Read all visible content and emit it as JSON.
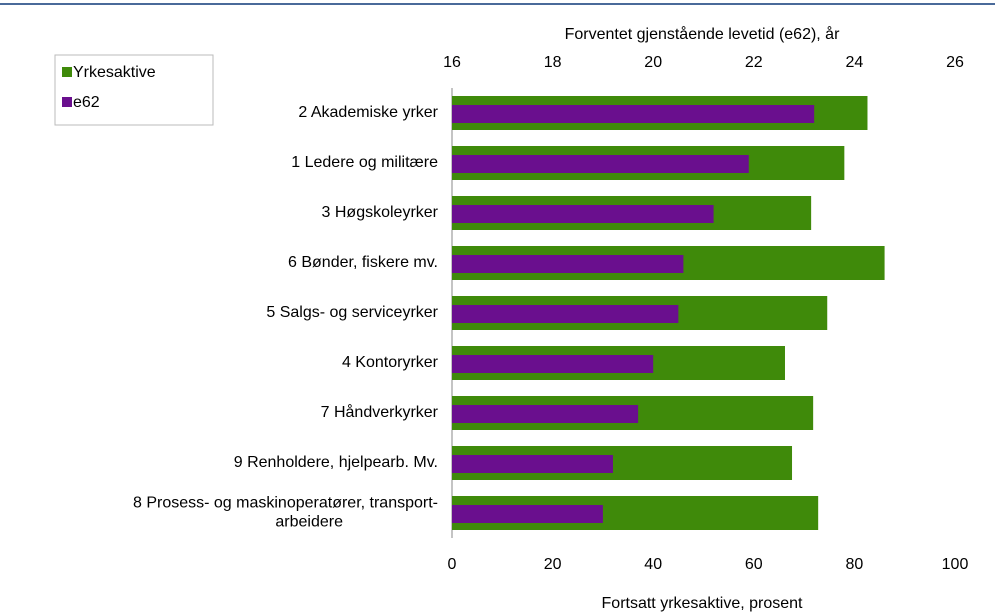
{
  "chart_data": {
    "type": "bar",
    "orientation": "horizontal",
    "x2label": "Forventet gjenstående levetid (e62), år",
    "xlabel": "Fortsatt yrkesaktive, prosent",
    "categories": [
      "2 Akademiske yrker",
      "1 Ledere og militære",
      "3 Høgskoleyrker",
      "6 Bønder, fiskere mv.",
      "5 Salgs- og serviceyrker",
      "4 Kontoryrker",
      "7 Håndverkyrker",
      "9 Renholdere, hjelpearb. Mv.",
      "8 Prosess- og maskinoperatører, transport-\narbeidere"
    ],
    "series": [
      {
        "name": "Yrkesaktive",
        "color": "#3f8a0a",
        "values": [
          82.6,
          78,
          71.4,
          86,
          74.6,
          66.2,
          71.8,
          67.6,
          72.8
        ]
      },
      {
        "name": "e62",
        "color": "#6a0f8e",
        "axis": "x2",
        "values": [
          23.2,
          21.9,
          21.2,
          20.6,
          20.5,
          20.0,
          19.7,
          19.2,
          19.0
        ]
      }
    ],
    "xlim": [
      0,
      100
    ],
    "xticks": [
      0,
      20,
      40,
      60,
      80,
      100
    ],
    "x2lim": [
      16,
      26
    ],
    "x2ticks": [
      16,
      18,
      20,
      22,
      24,
      26
    ],
    "legend": "top-left"
  }
}
